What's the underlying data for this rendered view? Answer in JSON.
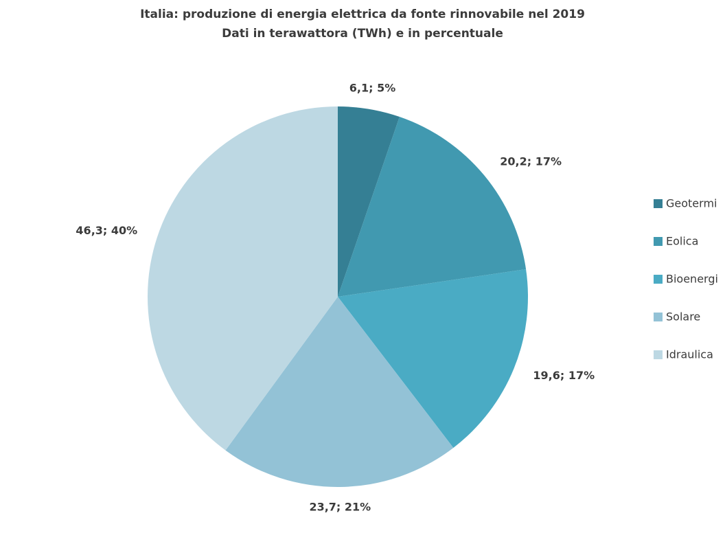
{
  "chart_data": {
    "type": "pie",
    "title": "Italia: produzione di energia elettrica da fonte rinnovabile nel 2019",
    "subtitle": "Dati in terawattora (TWh) e in percentuale",
    "categories": [
      "Geotermi",
      "Eolica",
      "Bioenergi",
      "Solare",
      "Idraulica"
    ],
    "values": [
      6.1,
      20.2,
      19.6,
      23.7,
      46.3
    ],
    "value_labels": [
      "6,1; 5%",
      "20,2; 17%",
      "19,6; 17%",
      "23,7; 21%",
      "46,3; 40%"
    ],
    "colors": [
      "#357f94",
      "#4199b0",
      "#4aabc4",
      "#93c2d6",
      "#bdd8e3"
    ],
    "legend": "right"
  }
}
